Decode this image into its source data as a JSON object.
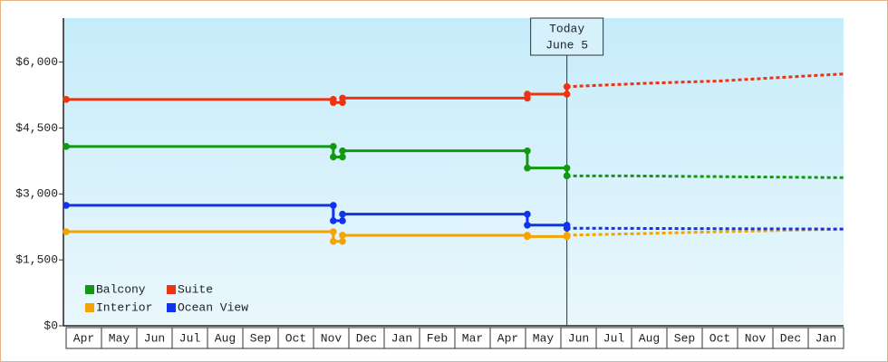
{
  "chart_data": {
    "type": "line",
    "xlim": [
      0,
      22
    ],
    "xticks": [
      {
        "value": 0.5,
        "label": "Apr"
      },
      {
        "value": 1.5,
        "label": "May"
      },
      {
        "value": 2.5,
        "label": "Jun"
      },
      {
        "value": 3.5,
        "label": "Jul"
      },
      {
        "value": 4.5,
        "label": "Aug"
      },
      {
        "value": 5.5,
        "label": "Sep"
      },
      {
        "value": 6.5,
        "label": "Oct"
      },
      {
        "value": 7.5,
        "label": "Nov"
      },
      {
        "value": 8.5,
        "label": "Dec"
      },
      {
        "value": 9.5,
        "label": "Jan"
      },
      {
        "value": 10.5,
        "label": "Feb"
      },
      {
        "value": 11.5,
        "label": "Mar"
      },
      {
        "value": 12.5,
        "label": "Apr"
      },
      {
        "value": 13.5,
        "label": "May"
      },
      {
        "value": 14.5,
        "label": "Jun"
      },
      {
        "value": 15.5,
        "label": "Jul"
      },
      {
        "value": 16.5,
        "label": "Aug"
      },
      {
        "value": 17.5,
        "label": "Sep"
      },
      {
        "value": 18.5,
        "label": "Oct"
      },
      {
        "value": 19.5,
        "label": "Nov"
      },
      {
        "value": 20.5,
        "label": "Dec"
      },
      {
        "value": 21.5,
        "label": "Jan"
      }
    ],
    "ylim": [
      0,
      7000
    ],
    "yticks": [
      {
        "value": 0,
        "label": "$0"
      },
      {
        "value": 1500,
        "label": "$1,500"
      },
      {
        "value": 3000,
        "label": "$3,000"
      },
      {
        "value": 4500,
        "label": "$4,500"
      },
      {
        "value": 6000,
        "label": "$6,000"
      }
    ],
    "annotation": {
      "lines": [
        "Today",
        "June 5"
      ],
      "x": 14.17
    },
    "series": [
      {
        "name": "Balcony",
        "color": "#119911",
        "x": [
          0,
          7.56,
          7.56,
          7.82,
          7.82,
          13.05,
          13.05,
          14.17,
          14.17
        ],
        "values": [
          4080,
          4080,
          3840,
          3840,
          3980,
          3980,
          3590,
          3590,
          3410
        ],
        "forecast_x": [
          14.17,
          16,
          22
        ],
        "forecast_values": [
          3410,
          3410,
          3370
        ]
      },
      {
        "name": "Suite",
        "color": "#ee3311",
        "x": [
          0,
          7.56,
          7.56,
          7.82,
          7.82,
          13.05,
          13.05,
          14.17,
          14.17
        ],
        "values": [
          5150,
          5150,
          5080,
          5080,
          5180,
          5180,
          5270,
          5270,
          5440
        ],
        "forecast_x": [
          14.17,
          16.5,
          18.5,
          20,
          22
        ],
        "forecast_values": [
          5440,
          5520,
          5570,
          5640,
          5730
        ]
      },
      {
        "name": "Interior",
        "color": "#f5a300",
        "x": [
          0,
          7.56,
          7.56,
          7.82,
          7.82,
          13.05,
          13.05,
          14.17,
          14.17
        ],
        "values": [
          2140,
          2140,
          1920,
          1920,
          2060,
          2060,
          2030,
          2030,
          2060
        ],
        "forecast_x": [
          14.17,
          18,
          22
        ],
        "forecast_values": [
          2060,
          2130,
          2200
        ]
      },
      {
        "name": "Ocean View",
        "color": "#1133ee",
        "x": [
          0,
          7.56,
          7.56,
          7.82,
          7.82,
          13.05,
          13.05,
          14.17,
          14.17
        ],
        "values": [
          2740,
          2740,
          2390,
          2390,
          2540,
          2540,
          2290,
          2290,
          2220
        ],
        "forecast_x": [
          14.17,
          22
        ],
        "forecast_values": [
          2220,
          2200
        ]
      }
    ]
  }
}
